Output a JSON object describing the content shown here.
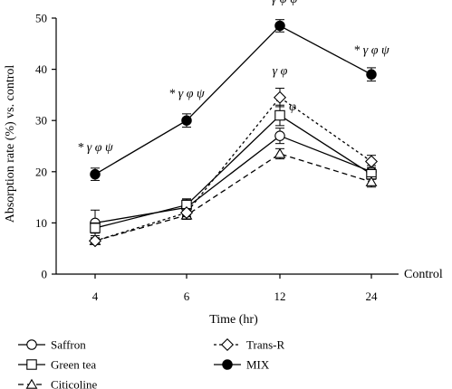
{
  "chart_data": {
    "type": "line",
    "title": "",
    "xlabel": "Time (hr)",
    "ylabel": "Absorption rate (%) vs. control",
    "reference_label": "Control",
    "categories": [
      "4",
      "6",
      "12",
      "24"
    ],
    "ylim": [
      0,
      50
    ],
    "yticks": [
      0,
      10,
      20,
      30,
      40,
      50
    ],
    "grid": false,
    "legend_position": "bottom",
    "series": [
      {
        "name": "Saffron",
        "marker": "circle-open",
        "dash": "solid",
        "color": "#000000",
        "values": [
          10,
          13,
          27,
          20
        ],
        "errors": [
          2.5,
          1.5,
          1.5,
          1.2
        ]
      },
      {
        "name": "Green tea",
        "marker": "square-open",
        "dash": "solid",
        "color": "#000000",
        "values": [
          9,
          13.5,
          31,
          19.5
        ],
        "errors": [
          1.0,
          1.2,
          2.0,
          1.0
        ]
      },
      {
        "name": "Citicoline",
        "marker": "triangle-open",
        "dash": "dashed",
        "color": "#000000",
        "values": [
          6.5,
          11.5,
          23.5,
          18
        ],
        "errors": [
          0.6,
          0.8,
          1.0,
          1.0
        ]
      },
      {
        "name": "Trans-R",
        "marker": "diamond-open",
        "dash": "dotted",
        "color": "#000000",
        "values": [
          6.5,
          12,
          34.5,
          22
        ],
        "errors": [
          0.5,
          0.8,
          1.8,
          1.2
        ]
      },
      {
        "name": "MIX",
        "marker": "circle-filled",
        "dash": "solid",
        "color": "#000000",
        "values": [
          19.5,
          30,
          48.5,
          39
        ],
        "errors": [
          1.2,
          1.3,
          1.2,
          1.3
        ]
      }
    ],
    "annotations": [
      {
        "category": "4",
        "y": 24,
        "text": "* γ φ ψ"
      },
      {
        "category": "6",
        "y": 34.5,
        "text": "* γ φ ψ"
      },
      {
        "category": "12",
        "y": 53,
        "text": "* γ φ ψ"
      },
      {
        "category": "24",
        "y": 43,
        "text": "* γ φ ψ"
      },
      {
        "category": "12",
        "y": 39,
        "text": "γ φ"
      },
      {
        "category": "12",
        "y": 32,
        "text": "φ"
      }
    ]
  }
}
